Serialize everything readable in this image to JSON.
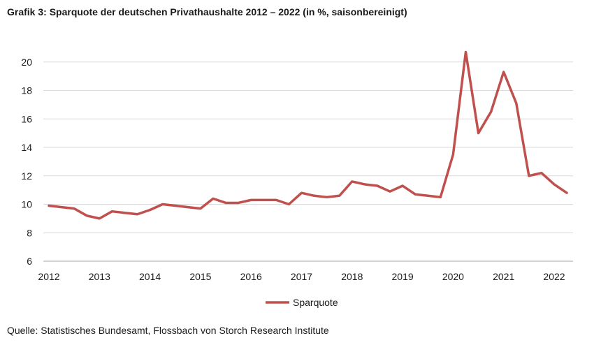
{
  "title": "Grafik 3: Sparquote der deutschen Privathaushalte 2012 – 2022 (in %, saisonbereinigt)",
  "source": "Quelle: Statistisches Bundesamt, Flossbach von Storch Research Institute",
  "colors": {
    "series": "#c0504d",
    "grid": "#d9d9d9",
    "axis": "#a6a6a6"
  },
  "chart_data": {
    "type": "line",
    "title": "Grafik 3: Sparquote der deutschen Privathaushalte 2012 – 2022 (in %, saisonbereinigt)",
    "xlabel": "",
    "ylabel": "",
    "ylim": [
      6,
      22
    ],
    "yticks": [
      6,
      8,
      10,
      12,
      14,
      16,
      18,
      20
    ],
    "xlim": [
      2012,
      2022.5
    ],
    "xticks": [
      2012,
      2013,
      2014,
      2015,
      2016,
      2017,
      2018,
      2019,
      2020,
      2021,
      2022
    ],
    "grid": true,
    "legend_position": "bottom",
    "series": [
      {
        "name": "Sparquote",
        "x": [
          2012.0,
          2012.25,
          2012.5,
          2012.75,
          2013.0,
          2013.25,
          2013.5,
          2013.75,
          2014.0,
          2014.25,
          2014.5,
          2014.75,
          2015.0,
          2015.25,
          2015.5,
          2015.75,
          2016.0,
          2016.25,
          2016.5,
          2016.75,
          2017.0,
          2017.25,
          2017.5,
          2017.75,
          2018.0,
          2018.25,
          2018.5,
          2018.75,
          2019.0,
          2019.25,
          2019.5,
          2019.75,
          2020.0,
          2020.25,
          2020.5,
          2020.75,
          2021.0,
          2021.25,
          2021.5,
          2021.75,
          2022.0,
          2022.25
        ],
        "values": [
          9.9,
          9.8,
          9.7,
          9.2,
          9.0,
          9.5,
          9.4,
          9.3,
          9.6,
          10.0,
          9.9,
          9.8,
          9.7,
          10.4,
          10.1,
          10.1,
          10.3,
          10.3,
          10.3,
          10.0,
          10.8,
          10.6,
          10.5,
          10.6,
          11.6,
          11.4,
          11.3,
          10.9,
          11.3,
          10.7,
          10.6,
          10.5,
          13.5,
          20.7,
          15.0,
          16.5,
          19.3,
          17.1,
          12.0,
          12.2,
          11.4,
          10.8
        ]
      }
    ]
  }
}
